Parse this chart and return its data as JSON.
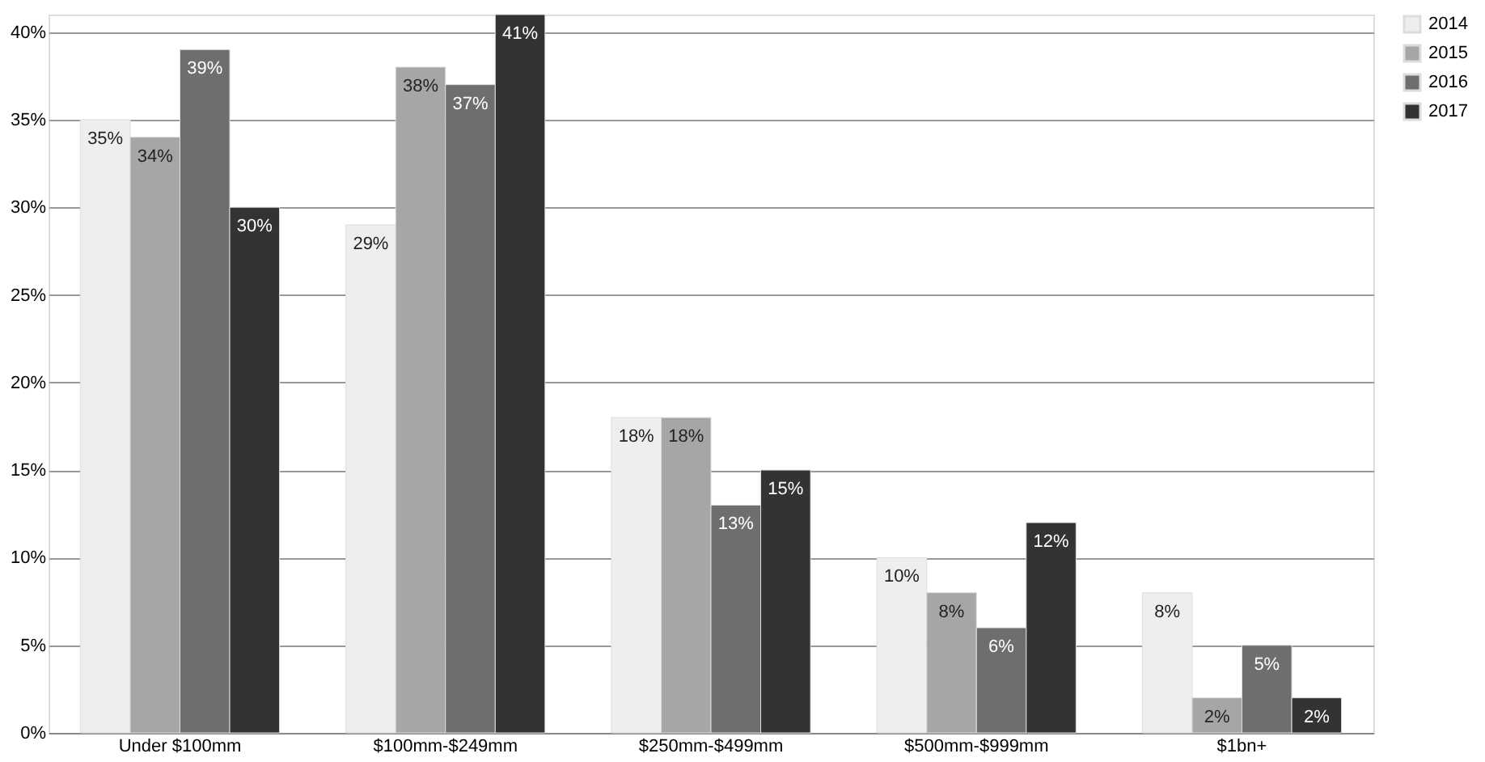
{
  "chart_data": {
    "type": "bar",
    "categories": [
      "Under $100mm",
      "$100mm-$249mm",
      "$250mm-$499mm",
      "$500mm-$999mm",
      "$1bn+"
    ],
    "series": [
      {
        "name": "2014",
        "color": "#eeeeee",
        "values": [
          35,
          29,
          18,
          10,
          8
        ],
        "value_labels": [
          "35%",
          "29%",
          "18%",
          "10%",
          "8%"
        ]
      },
      {
        "name": "2015",
        "color": "#a6a6a6",
        "values": [
          34,
          38,
          18,
          8,
          2
        ],
        "value_labels": [
          "34%",
          "38%",
          "18%",
          "8%",
          "2%"
        ]
      },
      {
        "name": "2016",
        "color": "#6e6e6e",
        "values": [
          39,
          37,
          13,
          6,
          5
        ],
        "value_labels": [
          "39%",
          "37%",
          "13%",
          "6%",
          "5%"
        ]
      },
      {
        "name": "2017",
        "color": "#333333",
        "values": [
          30,
          41,
          15,
          12,
          2
        ],
        "value_labels": [
          "30%",
          "41%",
          "15%",
          "12%",
          "2%"
        ]
      }
    ],
    "ylim": [
      0,
      41
    ],
    "yticks": [
      {
        "value": 0,
        "label": "0%"
      },
      {
        "value": 5,
        "label": "5%"
      },
      {
        "value": 10,
        "label": "10%"
      },
      {
        "value": 15,
        "label": "15%"
      },
      {
        "value": 20,
        "label": "20%"
      },
      {
        "value": 25,
        "label": "25%"
      },
      {
        "value": 30,
        "label": "30%"
      },
      {
        "value": 35,
        "label": "35%"
      },
      {
        "value": 40,
        "label": "40%"
      }
    ],
    "grid": "y",
    "legend": "right"
  }
}
